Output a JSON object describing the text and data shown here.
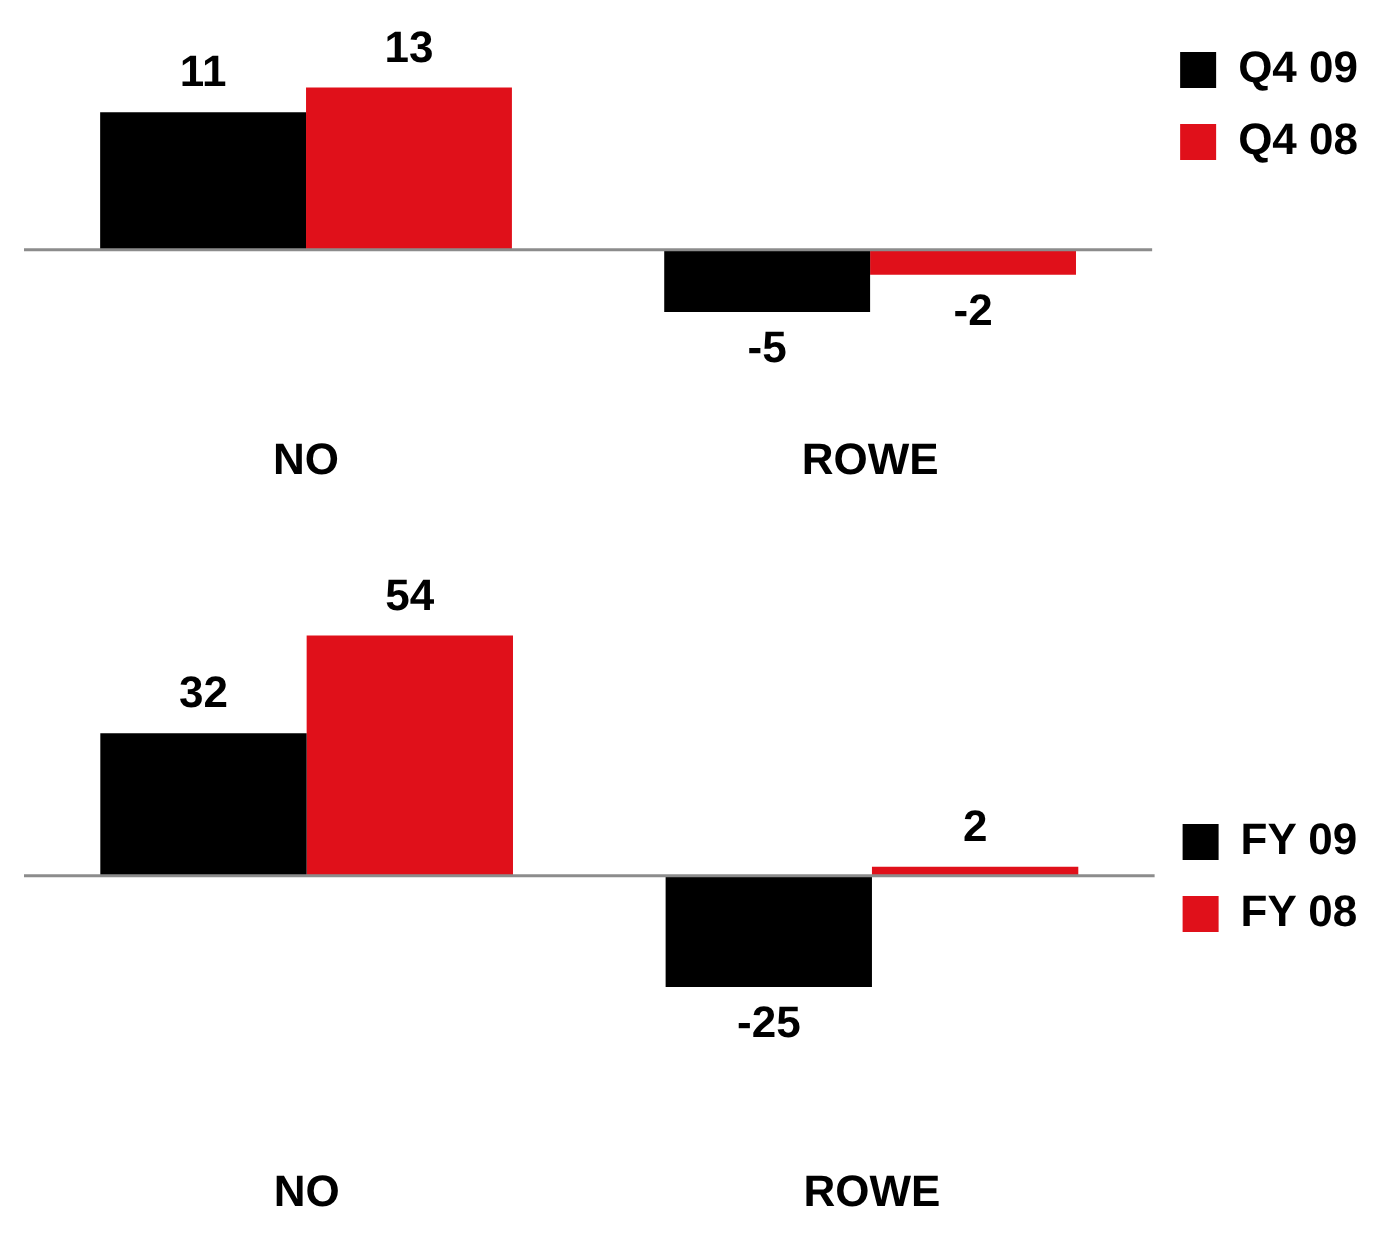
{
  "chart_data": [
    {
      "type": "bar",
      "categories": [
        "NO",
        "ROWE"
      ],
      "series": [
        {
          "name": "Q4 09",
          "color": "#000000",
          "values": [
            11,
            -5
          ]
        },
        {
          "name": "Q4 08",
          "color": "#e0101a",
          "values": [
            13,
            -2
          ]
        }
      ],
      "data_labels": true,
      "legend": "top right"
    },
    {
      "type": "bar",
      "categories": [
        "NO",
        "ROWE"
      ],
      "series": [
        {
          "name": "FY 09",
          "color": "#000000",
          "values": [
            32,
            -25
          ]
        },
        {
          "name": "FY 08",
          "color": "#e0101a",
          "values": [
            54,
            2
          ]
        }
      ],
      "data_labels": true,
      "legend": "right"
    }
  ]
}
